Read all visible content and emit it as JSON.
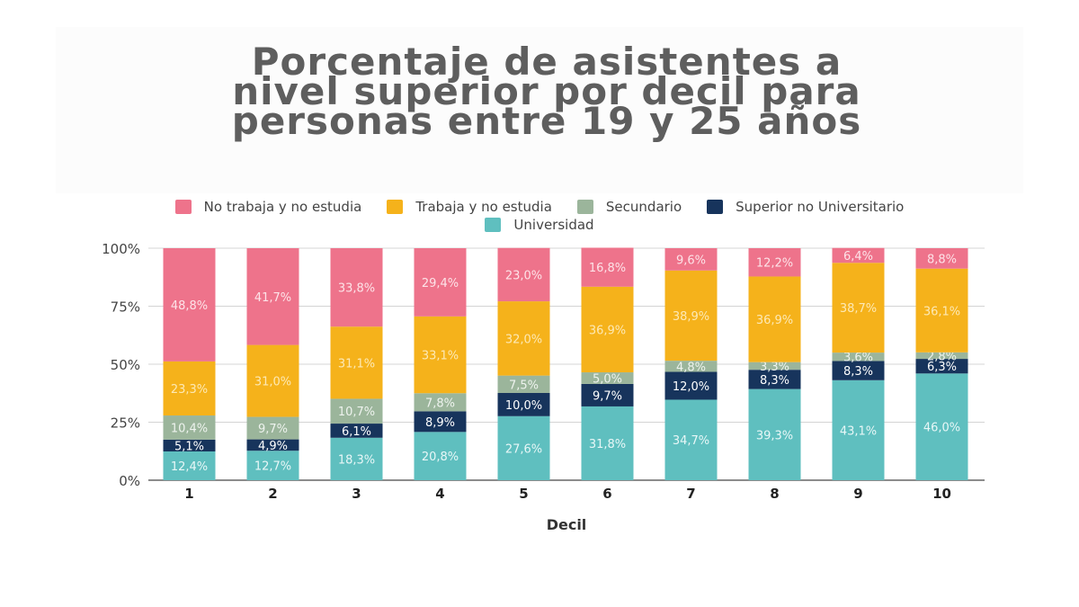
{
  "title": "Porcentaje de asistentes a\nnivel superior por decil para\npersonas entre 19 y 25 años",
  "chart_data": {
    "type": "bar",
    "stacked": true,
    "title": "Porcentaje de asistentes a nivel superior por decil para personas entre 19 y 25 años",
    "xlabel": "Decil",
    "ylabel": "",
    "ylim": [
      0,
      100
    ],
    "yticks": [
      "0%",
      "25%",
      "50%",
      "75%",
      "100%"
    ],
    "ytick_values": [
      0,
      25,
      50,
      75,
      100
    ],
    "grid": true,
    "legend_position": "top-center",
    "categories": [
      "1",
      "2",
      "3",
      "4",
      "5",
      "6",
      "7",
      "8",
      "9",
      "10"
    ],
    "series": [
      {
        "name": "Universidad",
        "color": "#5fbfbf",
        "label_color": "#e8f7f7",
        "values": [
          12.4,
          12.7,
          18.3,
          20.8,
          27.6,
          31.8,
          34.7,
          39.3,
          43.1,
          46.0
        ],
        "labels": [
          "12,4%",
          "12,7%",
          "18,3%",
          "20,8%",
          "27,6%",
          "31,8%",
          "34,7%",
          "39,3%",
          "43,1%",
          "46,0%"
        ]
      },
      {
        "name": "Superior no Universitario",
        "color": "#17345c",
        "label_color": "#ffffff",
        "values": [
          5.1,
          4.9,
          6.1,
          8.9,
          10.0,
          9.7,
          12.0,
          8.3,
          8.3,
          6.3
        ],
        "labels": [
          "5,1%",
          "4,9%",
          "6,1%",
          "8,9%",
          "10,0%",
          "9,7%",
          "12,0%",
          "8,3%",
          "8,3%",
          "6,3%"
        ]
      },
      {
        "name": "Secundario",
        "color": "#9bb59b",
        "label_color": "#eef3ee",
        "values": [
          10.4,
          9.7,
          10.7,
          7.8,
          7.5,
          5.0,
          4.8,
          3.3,
          3.6,
          2.8
        ],
        "labels": [
          "10,4%",
          "9,7%",
          "10,7%",
          "7,8%",
          "7,5%",
          "5,0%",
          "4,8%",
          "3,3%",
          "3,6%",
          "2,8%"
        ]
      },
      {
        "name": "Trabaja y no estudia",
        "color": "#f5b21b",
        "label_color": "#fde9b5",
        "values": [
          23.3,
          31.0,
          31.1,
          33.1,
          32.0,
          36.9,
          38.9,
          36.9,
          38.7,
          36.1
        ],
        "labels": [
          "23,3%",
          "31,0%",
          "31,1%",
          "33,1%",
          "32,0%",
          "36,9%",
          "38,9%",
          "36,9%",
          "38,7%",
          "36,1%"
        ]
      },
      {
        "name": "No trabaja y no estudia",
        "color": "#ee738b",
        "label_color": "#fde3e8",
        "values": [
          48.8,
          41.7,
          33.8,
          29.4,
          23.0,
          16.8,
          9.6,
          12.2,
          6.4,
          8.8
        ],
        "labels": [
          "48,8%",
          "41,7%",
          "33,8%",
          "29,4%",
          "23,0%",
          "16,8%",
          "9,6%",
          "12,2%",
          "6,4%",
          "8,8%"
        ]
      }
    ],
    "legend_order": [
      "No trabaja y no estudia",
      "Trabaja y no estudia",
      "Secundario",
      "Superior no Universitario",
      "Universidad"
    ]
  }
}
